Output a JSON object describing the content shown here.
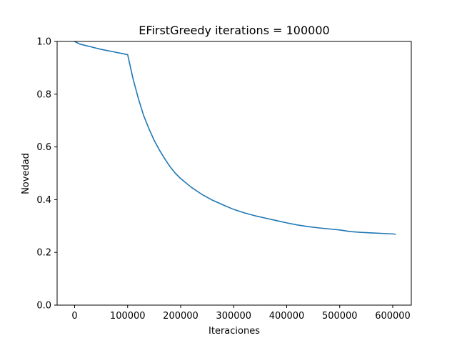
{
  "chart_data": {
    "type": "line",
    "title": "EFirstGreedy iterations = 100000",
    "xlabel": "Iteraciones",
    "ylabel": "Novedad",
    "xlim": [
      -33000,
      635000
    ],
    "ylim": [
      0.0,
      1.0
    ],
    "xticks": [
      0,
      100000,
      200000,
      300000,
      400000,
      500000,
      600000
    ],
    "xtick_labels": [
      "0",
      "100000",
      "200000",
      "300000",
      "400000",
      "500000",
      "600000"
    ],
    "yticks": [
      0.0,
      0.2,
      0.4,
      0.6,
      0.8,
      1.0
    ],
    "ytick_labels": [
      "0.0",
      "0.2",
      "0.4",
      "0.6",
      "0.8",
      "1.0"
    ],
    "grid": false,
    "series": [
      {
        "color": "#1f77b4",
        "x": [
          0,
          5000,
          10000,
          20000,
          30000,
          40000,
          50000,
          60000,
          70000,
          80000,
          90000,
          100000,
          110000,
          120000,
          130000,
          140000,
          150000,
          160000,
          170000,
          180000,
          190000,
          200000,
          220000,
          240000,
          260000,
          280000,
          300000,
          320000,
          340000,
          360000,
          380000,
          400000,
          420000,
          440000,
          460000,
          480000,
          500000,
          510000,
          520000,
          540000,
          560000,
          580000,
          600000,
          605000
        ],
        "y": [
          1.0,
          0.995,
          0.99,
          0.985,
          0.98,
          0.975,
          0.97,
          0.966,
          0.962,
          0.958,
          0.954,
          0.95,
          0.86,
          0.785,
          0.72,
          0.67,
          0.625,
          0.588,
          0.555,
          0.525,
          0.5,
          0.48,
          0.447,
          0.42,
          0.398,
          0.38,
          0.363,
          0.35,
          0.339,
          0.33,
          0.321,
          0.312,
          0.304,
          0.298,
          0.293,
          0.289,
          0.285,
          0.282,
          0.279,
          0.276,
          0.274,
          0.272,
          0.27,
          0.269
        ]
      }
    ]
  }
}
